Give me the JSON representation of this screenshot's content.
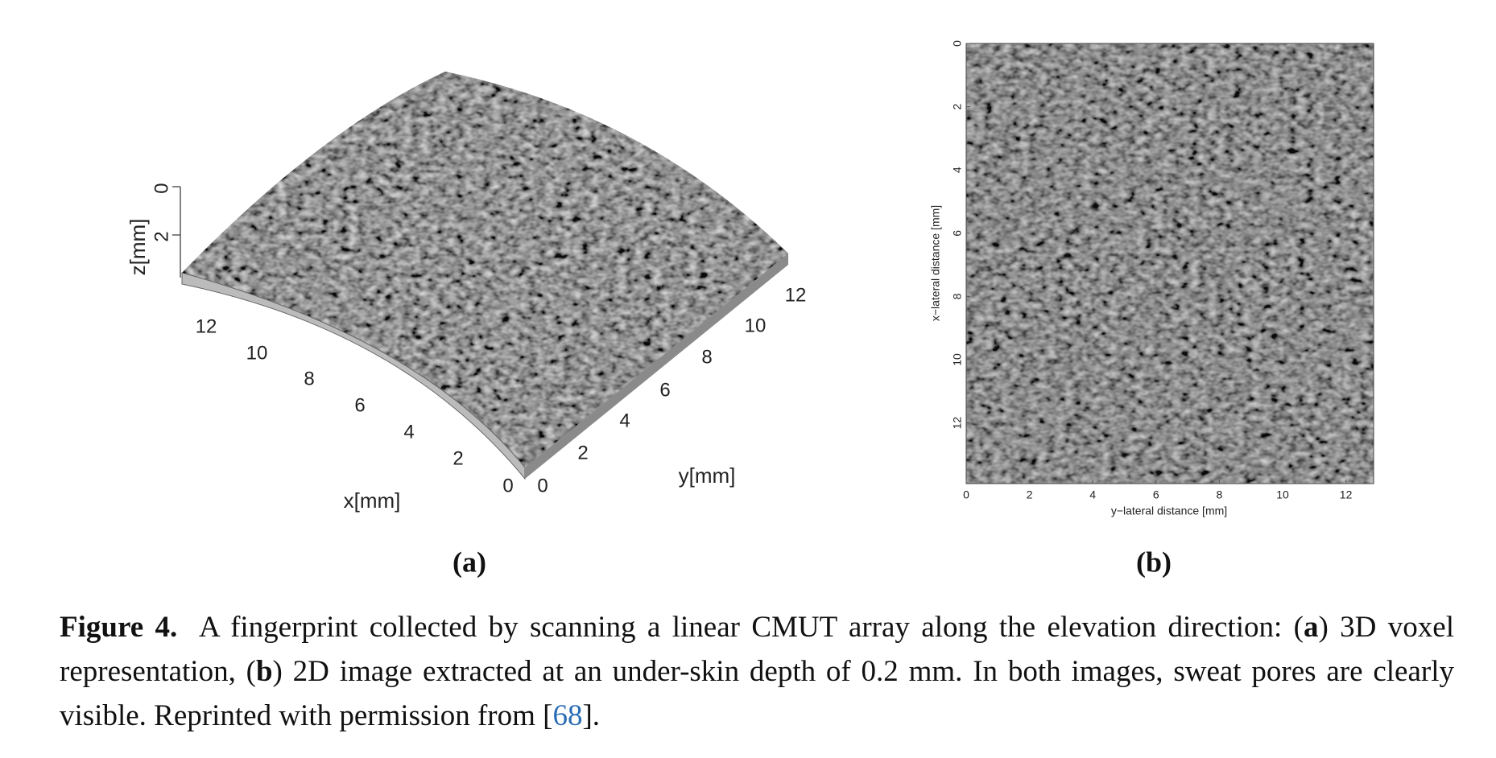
{
  "panel_a": {
    "label": "(a)",
    "z_axis_label": "z[mm]",
    "z_ticks": [
      0,
      2
    ],
    "x_axis_label": "x[mm]",
    "x_ticks": [
      0,
      2,
      4,
      6,
      8,
      10,
      12
    ],
    "y_axis_label": "y[mm]",
    "y_ticks": [
      0,
      2,
      4,
      6,
      8,
      10,
      12
    ]
  },
  "panel_b": {
    "label": "(b)",
    "x_axis_label": "y−lateral distance [mm]",
    "y_axis_label": "x−lateral distance [mm]",
    "x_ticks": [
      0,
      2,
      4,
      6,
      8,
      10,
      12
    ],
    "y_ticks": [
      0,
      2,
      4,
      6,
      8,
      10,
      12
    ]
  },
  "caption": {
    "label": "Figure 4.",
    "text_1": "A fingerprint collected by scanning a linear CMUT array along the elevation direction: (",
    "bold_a": "a",
    "text_2": ") 3D voxel representation, (",
    "bold_b": "b",
    "text_3": ") 2D image extracted at an under-skin depth of 0.2 mm. In both images, sweat pores are clearly visible. Reprinted with permission from [",
    "reference": "68",
    "text_4": "]."
  }
}
